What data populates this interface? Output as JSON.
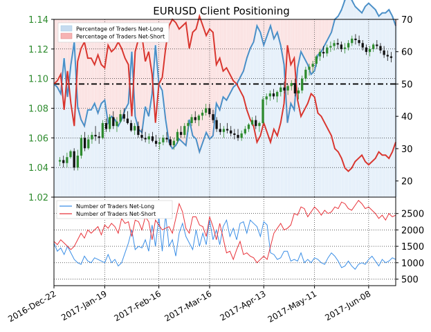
{
  "chart_data": {
    "type": "line",
    "title": "EURUSD Client Positioning",
    "x_ticks": [
      "2016-Dec-22",
      "2017-Jan-19",
      "2017-Feb-16",
      "2017-Mar-16",
      "2017-Apr-13",
      "2017-May-11",
      "2017-Jun-08"
    ],
    "top_panel": {
      "price_axis": {
        "ticks": [
          "1.02",
          "1.04",
          "1.06",
          "1.08",
          "1.10",
          "1.12",
          "1.14"
        ],
        "ylim": [
          1.02,
          1.14
        ],
        "color": "#2e8b2e"
      },
      "percent_axis": {
        "ticks": [
          "20",
          "30",
          "40",
          "50",
          "60",
          "70"
        ],
        "ylim": [
          15,
          70
        ]
      },
      "reference_line": 50,
      "legend": [
        "Percentage of Traders Net-Long",
        "Percentage of Traders Net-Short"
      ],
      "series_net_long_pct": [
        50,
        49,
        47,
        58,
        46,
        56,
        63,
        43,
        39,
        37,
        42,
        42,
        44,
        41,
        44,
        45,
        38,
        40,
        39,
        37,
        39,
        42,
        44,
        60,
        40,
        36,
        35,
        43,
        40,
        47,
        62,
        50,
        48,
        39,
        32,
        30,
        31,
        33,
        32,
        31,
        39,
        34,
        33,
        29,
        32,
        35,
        33,
        34,
        44,
        42,
        46,
        45,
        47,
        49,
        50,
        52,
        54,
        58,
        61,
        63,
        68,
        66,
        62,
        65,
        68,
        64,
        66,
        62,
        56,
        38,
        44,
        42,
        55,
        60,
        58,
        56,
        53,
        54,
        59,
        60,
        62,
        64,
        66,
        70,
        71,
        73,
        76,
        77,
        76,
        74,
        73,
        72,
        74,
        75,
        74,
        73,
        71,
        72,
        72,
        73,
        71,
        68
      ],
      "series_net_short_pct": [
        50,
        51,
        53,
        42,
        54,
        44,
        37,
        57,
        61,
        63,
        58,
        58,
        56,
        59,
        56,
        55,
        62,
        60,
        61,
        63,
        61,
        58,
        56,
        40,
        60,
        64,
        65,
        57,
        60,
        53,
        38,
        50,
        52,
        61,
        68,
        70,
        69,
        67,
        68,
        69,
        61,
        66,
        67,
        71,
        68,
        65,
        67,
        66,
        56,
        58,
        54,
        55,
        53,
        51,
        50,
        48,
        46,
        42,
        39,
        37,
        32,
        34,
        38,
        35,
        32,
        36,
        34,
        38,
        44,
        62,
        56,
        58,
        45,
        40,
        42,
        44,
        47,
        46,
        41,
        40,
        38,
        36,
        34,
        30,
        29,
        27,
        24,
        23,
        24,
        26,
        27,
        28,
        26,
        25,
        26,
        27,
        29,
        28,
        28,
        27,
        29,
        32
      ],
      "price_ohlc": [
        [
          1.044,
          1.047,
          1.041,
          1.045
        ],
        [
          1.045,
          1.048,
          1.04,
          1.043
        ],
        [
          1.043,
          1.05,
          1.04,
          1.047
        ],
        [
          1.047,
          1.052,
          1.046,
          1.051
        ],
        [
          1.051,
          1.053,
          1.038,
          1.04
        ],
        [
          1.04,
          1.052,
          1.038,
          1.048
        ],
        [
          1.048,
          1.062,
          1.046,
          1.06
        ],
        [
          1.06,
          1.064,
          1.051,
          1.053
        ],
        [
          1.053,
          1.062,
          1.052,
          1.059
        ],
        [
          1.059,
          1.064,
          1.056,
          1.062
        ],
        [
          1.062,
          1.068,
          1.058,
          1.061
        ],
        [
          1.061,
          1.064,
          1.056,
          1.06
        ],
        [
          1.06,
          1.072,
          1.059,
          1.07
        ],
        [
          1.07,
          1.073,
          1.064,
          1.066
        ],
        [
          1.066,
          1.076,
          1.064,
          1.074
        ],
        [
          1.074,
          1.078,
          1.066,
          1.068
        ],
        [
          1.068,
          1.074,
          1.064,
          1.071
        ],
        [
          1.071,
          1.079,
          1.07,
          1.076
        ],
        [
          1.076,
          1.08,
          1.071,
          1.073
        ],
        [
          1.073,
          1.078,
          1.069,
          1.07
        ],
        [
          1.07,
          1.072,
          1.064,
          1.065
        ],
        [
          1.065,
          1.07,
          1.062,
          1.068
        ],
        [
          1.068,
          1.071,
          1.06,
          1.062
        ],
        [
          1.062,
          1.066,
          1.058,
          1.06
        ],
        [
          1.06,
          1.064,
          1.057,
          1.059
        ],
        [
          1.059,
          1.063,
          1.056,
          1.061
        ],
        [
          1.061,
          1.064,
          1.057,
          1.058
        ],
        [
          1.058,
          1.062,
          1.054,
          1.056
        ],
        [
          1.056,
          1.06,
          1.052,
          1.057
        ],
        [
          1.057,
          1.062,
          1.055,
          1.06
        ],
        [
          1.06,
          1.064,
          1.057,
          1.059
        ],
        [
          1.059,
          1.061,
          1.054,
          1.055
        ],
        [
          1.055,
          1.06,
          1.052,
          1.058
        ],
        [
          1.058,
          1.066,
          1.056,
          1.064
        ],
        [
          1.064,
          1.068,
          1.06,
          1.062
        ],
        [
          1.062,
          1.07,
          1.06,
          1.068
        ],
        [
          1.068,
          1.072,
          1.064,
          1.07
        ],
        [
          1.07,
          1.076,
          1.068,
          1.074
        ],
        [
          1.074,
          1.078,
          1.07,
          1.072
        ],
        [
          1.072,
          1.076,
          1.068,
          1.075
        ],
        [
          1.075,
          1.079,
          1.072,
          1.077
        ],
        [
          1.077,
          1.083,
          1.075,
          1.08
        ],
        [
          1.08,
          1.083,
          1.074,
          1.076
        ],
        [
          1.076,
          1.079,
          1.07,
          1.072
        ],
        [
          1.072,
          1.074,
          1.064,
          1.066
        ],
        [
          1.066,
          1.07,
          1.062,
          1.064
        ],
        [
          1.064,
          1.068,
          1.06,
          1.066
        ],
        [
          1.066,
          1.07,
          1.063,
          1.065
        ],
        [
          1.065,
          1.068,
          1.061,
          1.063
        ],
        [
          1.063,
          1.066,
          1.059,
          1.062
        ],
        [
          1.062,
          1.066,
          1.058,
          1.06
        ],
        [
          1.06,
          1.065,
          1.058,
          1.063
        ],
        [
          1.063,
          1.068,
          1.062,
          1.066
        ],
        [
          1.066,
          1.07,
          1.064,
          1.069
        ],
        [
          1.069,
          1.074,
          1.068,
          1.072
        ],
        [
          1.072,
          1.075,
          1.066,
          1.068
        ],
        [
          1.068,
          1.071,
          1.064,
          1.07
        ],
        [
          1.07,
          1.088,
          1.069,
          1.086
        ],
        [
          1.086,
          1.09,
          1.082,
          1.088
        ],
        [
          1.088,
          1.092,
          1.085,
          1.09
        ],
        [
          1.09,
          1.093,
          1.086,
          1.088
        ],
        [
          1.088,
          1.092,
          1.084,
          1.091
        ],
        [
          1.091,
          1.096,
          1.088,
          1.094
        ],
        [
          1.094,
          1.098,
          1.09,
          1.092
        ],
        [
          1.092,
          1.096,
          1.089,
          1.095
        ],
        [
          1.095,
          1.099,
          1.092,
          1.097
        ],
        [
          1.097,
          1.1,
          1.088,
          1.09
        ],
        [
          1.09,
          1.094,
          1.086,
          1.092
        ],
        [
          1.092,
          1.102,
          1.09,
          1.1
        ],
        [
          1.1,
          1.108,
          1.098,
          1.106
        ],
        [
          1.106,
          1.11,
          1.102,
          1.108
        ],
        [
          1.108,
          1.112,
          1.104,
          1.11
        ],
        [
          1.11,
          1.116,
          1.108,
          1.115
        ],
        [
          1.115,
          1.12,
          1.112,
          1.118
        ],
        [
          1.118,
          1.122,
          1.114,
          1.117
        ],
        [
          1.117,
          1.123,
          1.115,
          1.121
        ],
        [
          1.121,
          1.125,
          1.118,
          1.122
        ],
        [
          1.122,
          1.126,
          1.119,
          1.124
        ],
        [
          1.124,
          1.127,
          1.12,
          1.123
        ],
        [
          1.123,
          1.125,
          1.118,
          1.12
        ],
        [
          1.12,
          1.124,
          1.117,
          1.121
        ],
        [
          1.121,
          1.126,
          1.119,
          1.124
        ],
        [
          1.124,
          1.129,
          1.122,
          1.127
        ],
        [
          1.127,
          1.13,
          1.123,
          1.126
        ],
        [
          1.126,
          1.129,
          1.122,
          1.124
        ],
        [
          1.124,
          1.126,
          1.119,
          1.121
        ],
        [
          1.121,
          1.123,
          1.116,
          1.118
        ],
        [
          1.118,
          1.122,
          1.115,
          1.12
        ],
        [
          1.12,
          1.124,
          1.118,
          1.123
        ],
        [
          1.123,
          1.126,
          1.12,
          1.122
        ],
        [
          1.122,
          1.124,
          1.117,
          1.119
        ],
        [
          1.119,
          1.122,
          1.114,
          1.116
        ],
        [
          1.116,
          1.119,
          1.112,
          1.115
        ],
        [
          1.115,
          1.118,
          1.111,
          1.114
        ]
      ]
    },
    "bottom_panel": {
      "axis": {
        "ticks": [
          "500",
          "1000",
          "1500",
          "2000",
          "2500"
        ],
        "ylim": [
          300,
          3000
        ]
      },
      "legend": [
        "Number of Traders Net-Long",
        "Number of Traders Net-Short"
      ],
      "series_net_long_count": [
        1600,
        1350,
        1450,
        1250,
        1500,
        1300,
        1100,
        1000,
        950,
        1200,
        1050,
        1000,
        1150,
        1100,
        1050,
        1000,
        1250,
        1000,
        1100,
        900,
        1000,
        1300,
        1600,
        2000,
        1400,
        1500,
        1450,
        1700,
        1350,
        2150,
        1500,
        2400,
        1350,
        2450,
        1500,
        1700,
        1200,
        1900,
        2200,
        1800,
        1600,
        1400,
        2000,
        1500,
        1900,
        1550,
        2300,
        1700,
        2000,
        1550,
        2100,
        2300,
        1800,
        2050,
        1700,
        2200,
        2250,
        1900,
        2300,
        2200,
        2100,
        1800,
        2250,
        2150,
        1300,
        1250,
        1100,
        1150,
        1350,
        1350,
        1050,
        1100,
        1050,
        1300,
        1000,
        1100,
        1000,
        1150,
        1100,
        1000,
        950,
        1150,
        1300,
        1200,
        1050,
        850,
        900,
        1050,
        900,
        800,
        950,
        1000,
        950,
        1100,
        1200,
        1050,
        900,
        1100,
        1000,
        1050,
        1150,
        1100
      ],
      "series_net_short_count": [
        1650,
        1550,
        1700,
        1600,
        1500,
        1400,
        1500,
        1700,
        1900,
        1750,
        2000,
        1900,
        2000,
        2100,
        1850,
        2150,
        2050,
        2200,
        2100,
        1900,
        2350,
        2200,
        2250,
        1800,
        2300,
        2250,
        2000,
        2400,
        2250,
        1700,
        2300,
        2150,
        2000,
        2050,
        2100,
        1900,
        2350,
        2800,
        2550,
        2050,
        1900,
        2400,
        2400,
        2150,
        2100,
        1800,
        2400,
        2100,
        1700,
        2200,
        1750,
        1300,
        1350,
        1100,
        1400,
        1650,
        1250,
        1300,
        1200,
        1150,
        1000,
        1100,
        1200,
        1100,
        1500,
        1900,
        2050,
        2200,
        2000,
        2050,
        2150,
        2500,
        2450,
        2700,
        2650,
        2400,
        2550,
        2700,
        2600,
        2450,
        2600,
        2500,
        2550,
        2700,
        2650,
        2850,
        2800,
        2650,
        2600,
        2750,
        2900,
        2800,
        2650,
        2700,
        2600,
        2500,
        2350,
        2450,
        2300,
        2500,
        2400,
        2450
      ]
    }
  }
}
